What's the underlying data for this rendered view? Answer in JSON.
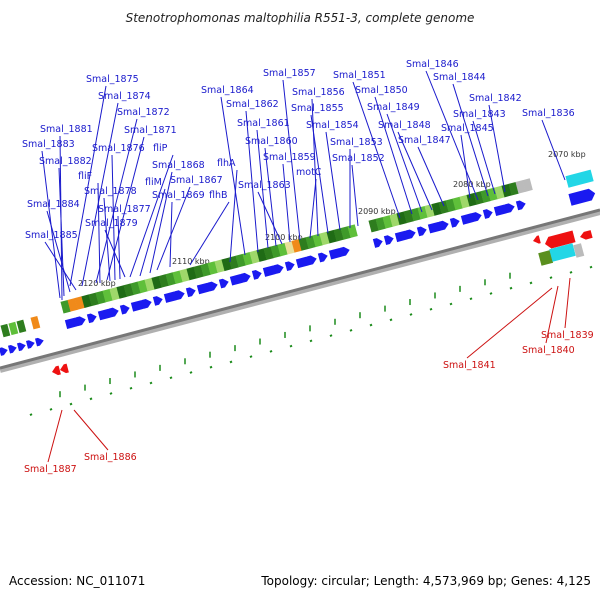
{
  "title": "Stenotrophomonas maltophilia R551-3, complete genome",
  "footer": {
    "accession": "Accession: NC_011071",
    "topology": "Topology: circular; Length: 4,573,969 bp; Genes: 4,125"
  },
  "colors": {
    "forward_gene": "#1a1af0",
    "reverse_gene": "#ee1111",
    "upper_label": "#1a1acc",
    "lower_label": "#cc1111",
    "backbone": "#777777",
    "tick": "#1a8a1a"
  },
  "kbp_ticks": [
    "2070 kbp",
    "2080 kbp",
    "2090 kbp",
    "2100 kbp",
    "2110 kbp",
    "2120 kbp"
  ],
  "upper_genes": [
    "Smal_1875",
    "Smal_1874",
    "Smal_1872",
    "Smal_1871",
    "Smal_1881",
    "Smal_1883",
    "Smal_1876",
    "fliP",
    "Smal_1882",
    "fliF",
    "fliM",
    "Smal_1868",
    "Smal_1867",
    "Smal_1878",
    "Smal_1869",
    "flhB",
    "Smal_1884",
    "Smal_1877",
    "Smal_1879",
    "Smal_1885",
    "flhA",
    "Smal_1864",
    "Smal_1862",
    "Smal_1861",
    "Smal_1860",
    "Smal_1863",
    "Smal_1859",
    "motC",
    "Smal_1857",
    "Smal_1856",
    "Smal_1855",
    "Smal_1854",
    "Smal_1853",
    "Smal_1852",
    "Smal_1851",
    "Smal_1850",
    "Smal_1849",
    "Smal_1848",
    "Smal_1847",
    "Smal_1846",
    "Smal_1844",
    "Smal_1842",
    "Smal_1843",
    "Smal_1845",
    "Smal_1836"
  ],
  "lower_genes": [
    "Smal_1887",
    "Smal_1886",
    "Smal_1841",
    "Smal_1840",
    "Smal_1839"
  ]
}
